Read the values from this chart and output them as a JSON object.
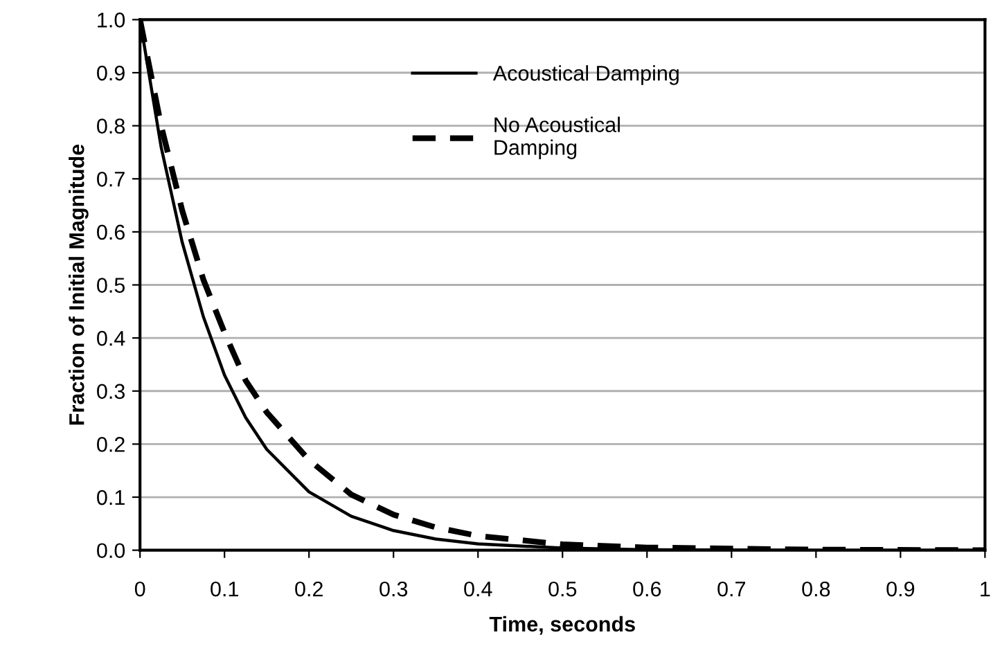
{
  "chart_data": {
    "type": "line",
    "xlabel": "Time, seconds",
    "ylabel": "Fraction of Initial Magnitude",
    "x": [
      0,
      0.025,
      0.05,
      0.075,
      0.1,
      0.125,
      0.15,
      0.2,
      0.25,
      0.3,
      0.35,
      0.4,
      0.5,
      0.6,
      0.8,
      1.0
    ],
    "series": [
      {
        "name": "Acoustical Damping",
        "color": "#000000",
        "line_style": "solid",
        "values": [
          1,
          0.76,
          0.58,
          0.44,
          0.33,
          0.25,
          0.19,
          0.11,
          0.064,
          0.037,
          0.021,
          0.012,
          0.004,
          0.001,
          0,
          0
        ]
      },
      {
        "name": "No Acoustical\nDamping",
        "color": "#000000",
        "line_style": "dashed",
        "values": [
          1,
          0.8,
          0.64,
          0.51,
          0.41,
          0.32,
          0.26,
          0.17,
          0.105,
          0.067,
          0.043,
          0.027,
          0.011,
          0.005,
          0.001,
          0
        ]
      }
    ],
    "xlim": [
      0,
      1
    ],
    "ylim": [
      0,
      1
    ],
    "xticks": [
      0,
      0.1,
      0.2,
      0.3,
      0.4,
      0.5,
      0.6,
      0.7,
      0.8,
      0.9,
      1
    ],
    "yticks": [
      {
        "value": 0,
        "label": "0.0"
      },
      0.1,
      0.2,
      0.3,
      0.4,
      0.5,
      0.6,
      0.7,
      0.8,
      0.9,
      {
        "value": 1,
        "label": "1.0"
      }
    ],
    "grid": "y",
    "legend": "top",
    "marker": "none"
  }
}
